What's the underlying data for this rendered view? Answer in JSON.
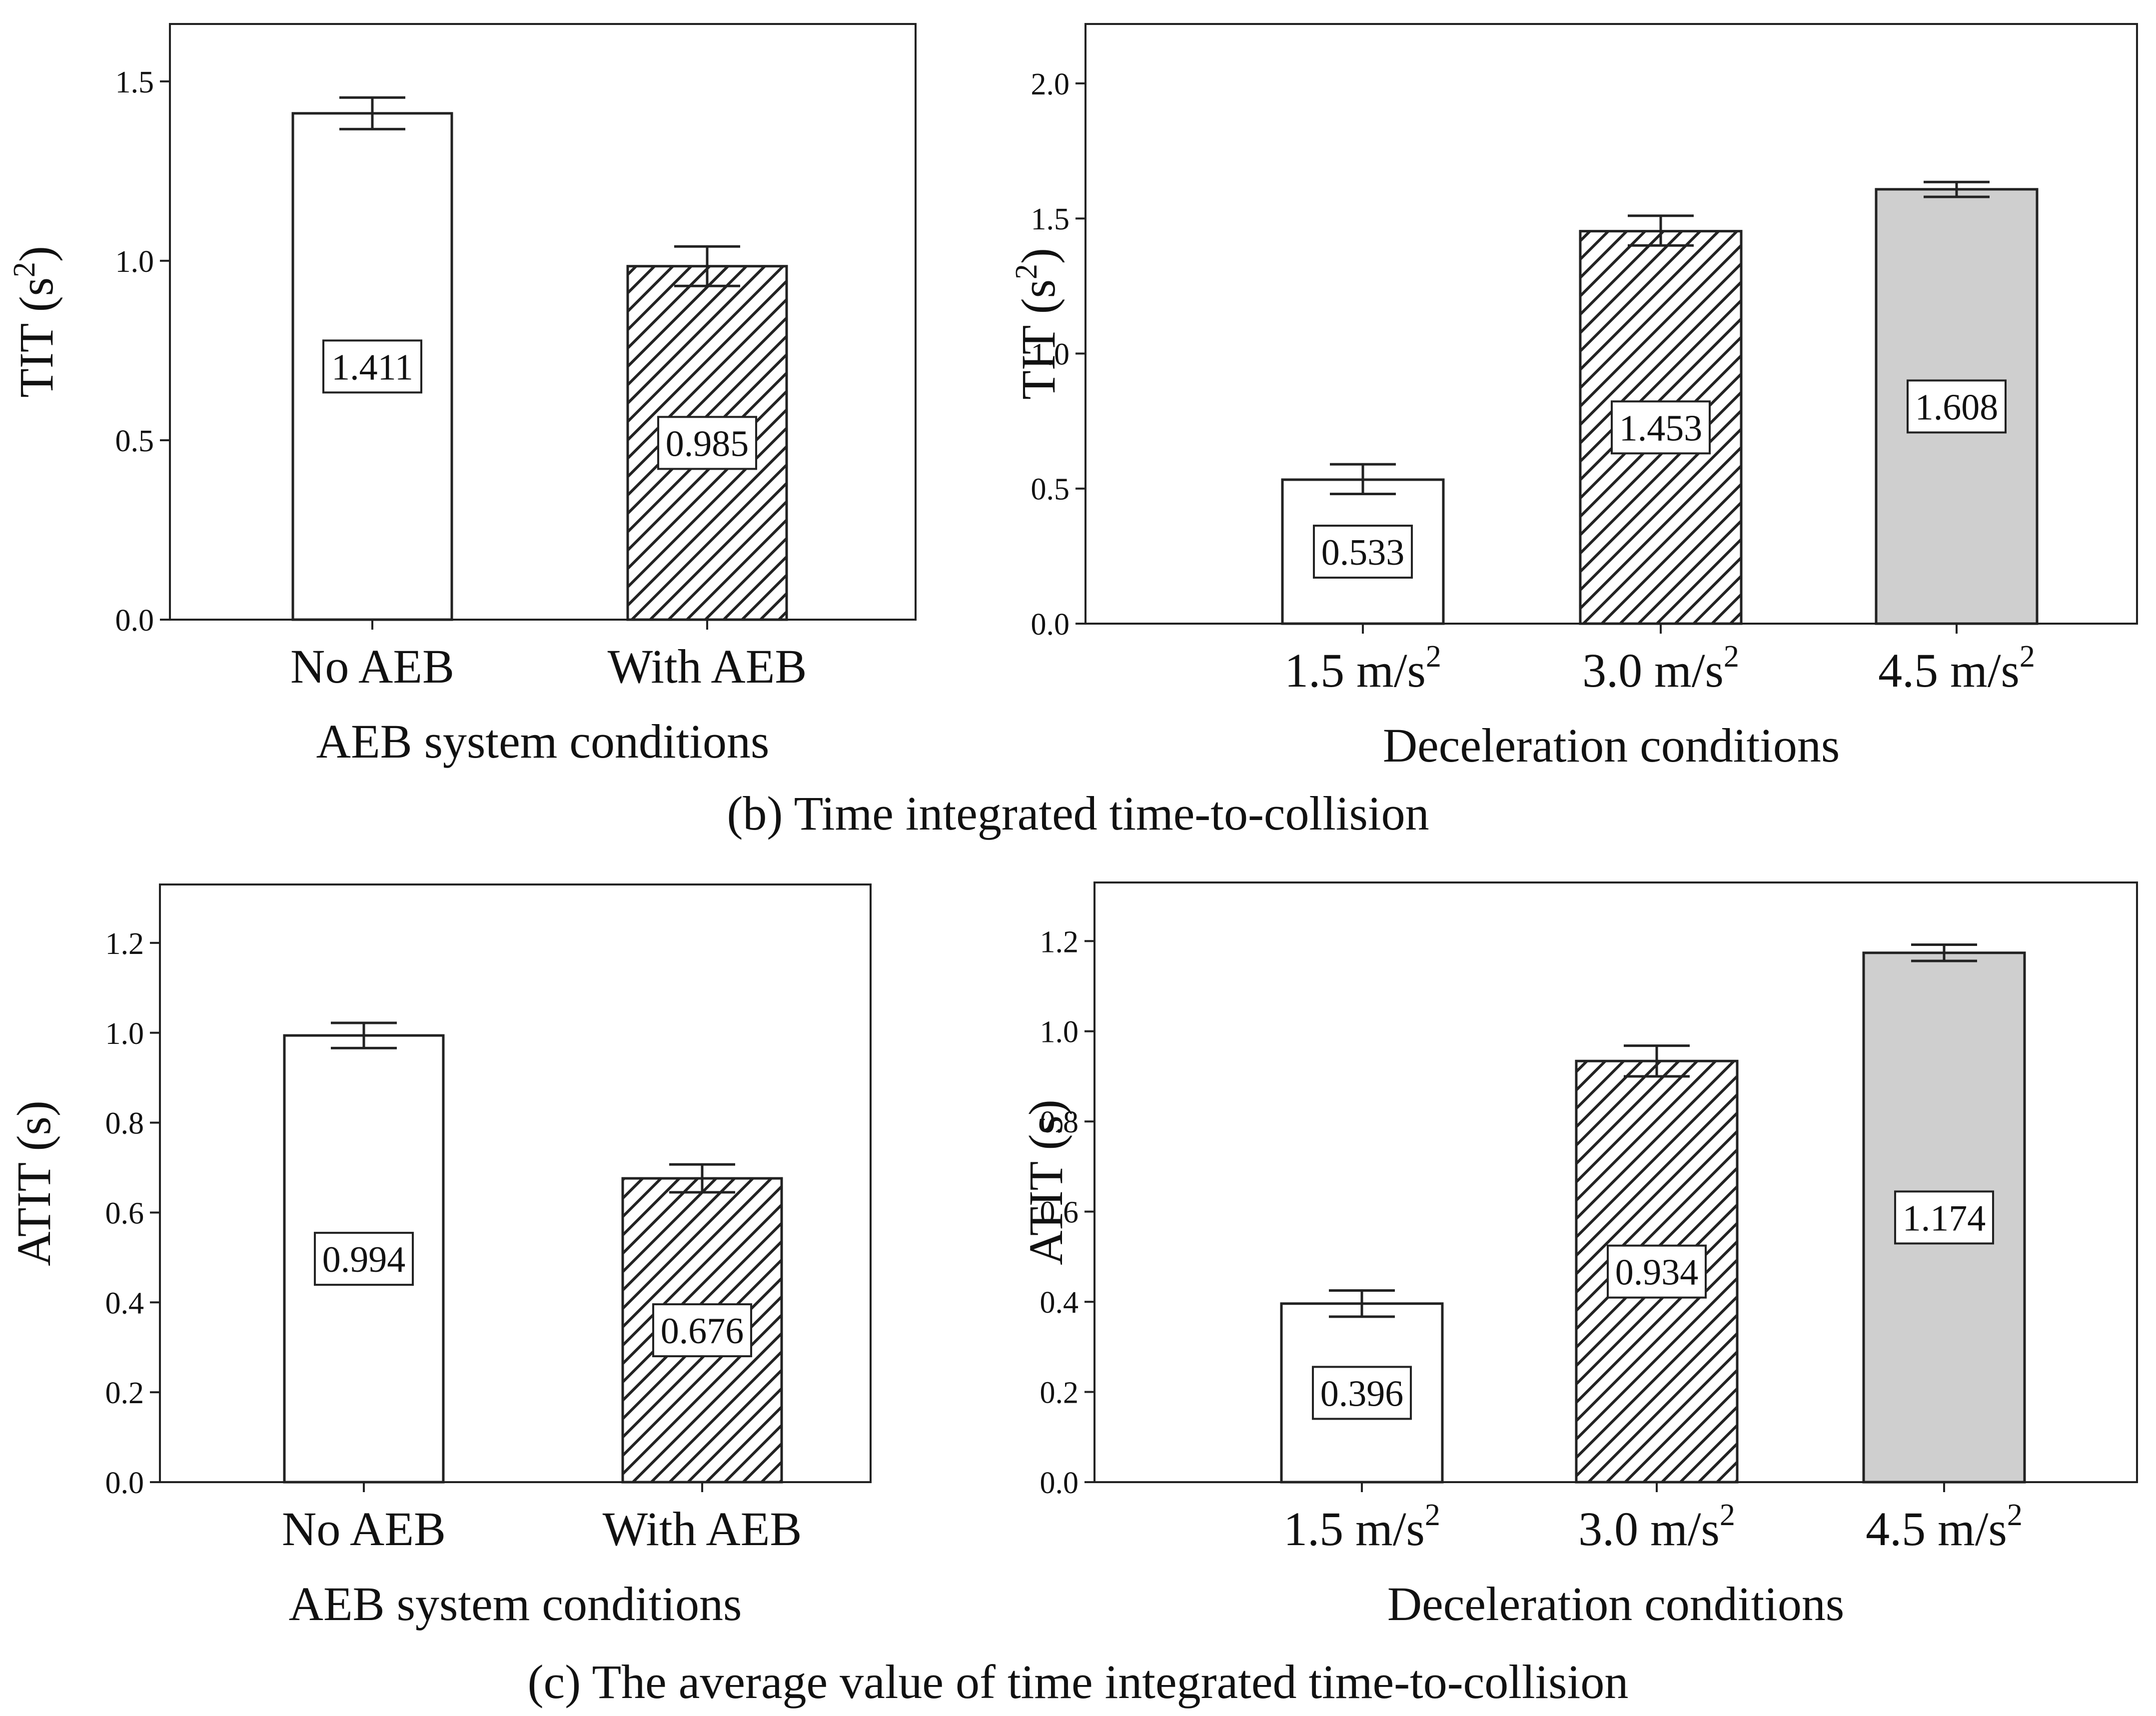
{
  "colors": {
    "white_fill": "#ffffff",
    "hatch_color": "#222222",
    "gray_fill": "#cfcfcf",
    "stroke": "#222222"
  },
  "captions": {
    "b": "(b) Time integrated time-to-collision",
    "c": "(c) The average value of time integrated time-to-collision"
  },
  "chart_data": [
    {
      "type": "bar",
      "ylabel_base": "TIT",
      "ylabel_unit": "s",
      "ylabel_sup": "2",
      "xlabel": "AEB system conditions",
      "categories": [
        {
          "base": "No AEB",
          "sup": ""
        },
        {
          "base": "With AEB",
          "sup": ""
        }
      ],
      "values": [
        1.411,
        0.985
      ],
      "value_labels": [
        "1.411",
        "0.985"
      ],
      "error_upper": [
        1.455,
        1.04
      ],
      "error_lower": [
        1.367,
        0.93
      ],
      "fills": [
        "white",
        "hatch"
      ],
      "ylim": [
        0,
        1.66
      ],
      "yticks": [
        "0.0",
        "0.5",
        "1.0",
        "1.5"
      ]
    },
    {
      "type": "bar",
      "ylabel_base": "TIT",
      "ylabel_unit": "s",
      "ylabel_sup": "2",
      "xlabel": "Deceleration conditions",
      "categories": [
        {
          "base": "1.5 m/s",
          "sup": "2"
        },
        {
          "base": "3.0 m/s",
          "sup": "2"
        },
        {
          "base": "4.5 m/s",
          "sup": "2"
        }
      ],
      "values": [
        0.533,
        1.453,
        1.608
      ],
      "value_labels": [
        "0.533",
        "1.453",
        "1.608"
      ],
      "error_upper": [
        0.59,
        1.51,
        1.635
      ],
      "error_lower": [
        0.48,
        1.4,
        1.58
      ],
      "fills": [
        "white",
        "hatch",
        "gray"
      ],
      "ylim": [
        0,
        2.22
      ],
      "yticks": [
        "0.0",
        "0.5",
        "1.0",
        "1.5",
        "2.0"
      ]
    },
    {
      "type": "bar",
      "ylabel_base": "ATIT",
      "ylabel_unit": "s",
      "ylabel_sup": "",
      "xlabel": "AEB system conditions",
      "categories": [
        {
          "base": "No AEB",
          "sup": ""
        },
        {
          "base": "With AEB",
          "sup": ""
        }
      ],
      "values": [
        0.994,
        0.676
      ],
      "value_labels": [
        "0.994",
        "0.676"
      ],
      "error_upper": [
        1.022,
        0.707
      ],
      "error_lower": [
        0.966,
        0.645
      ],
      "fills": [
        "white",
        "hatch"
      ],
      "ylim": [
        0,
        1.33
      ],
      "yticks": [
        "0.0",
        "0.2",
        "0.4",
        "0.6",
        "0.8",
        "1.0",
        "1.2"
      ]
    },
    {
      "type": "bar",
      "ylabel_base": "ATIT",
      "ylabel_unit": "s",
      "ylabel_sup": "",
      "xlabel": "Deceleration conditions",
      "categories": [
        {
          "base": "1.5 m/s",
          "sup": "2"
        },
        {
          "base": "3.0 m/s",
          "sup": "2"
        },
        {
          "base": "4.5 m/s",
          "sup": "2"
        }
      ],
      "values": [
        0.396,
        0.934,
        1.174
      ],
      "value_labels": [
        "0.396",
        "0.934",
        "1.174"
      ],
      "error_upper": [
        0.425,
        0.968,
        1.192
      ],
      "error_lower": [
        0.367,
        0.9,
        1.156
      ],
      "fills": [
        "white",
        "hatch",
        "gray"
      ],
      "ylim": [
        0,
        1.33
      ],
      "yticks": [
        "0.0",
        "0.2",
        "0.4",
        "0.6",
        "0.8",
        "1.0",
        "1.2"
      ]
    }
  ]
}
